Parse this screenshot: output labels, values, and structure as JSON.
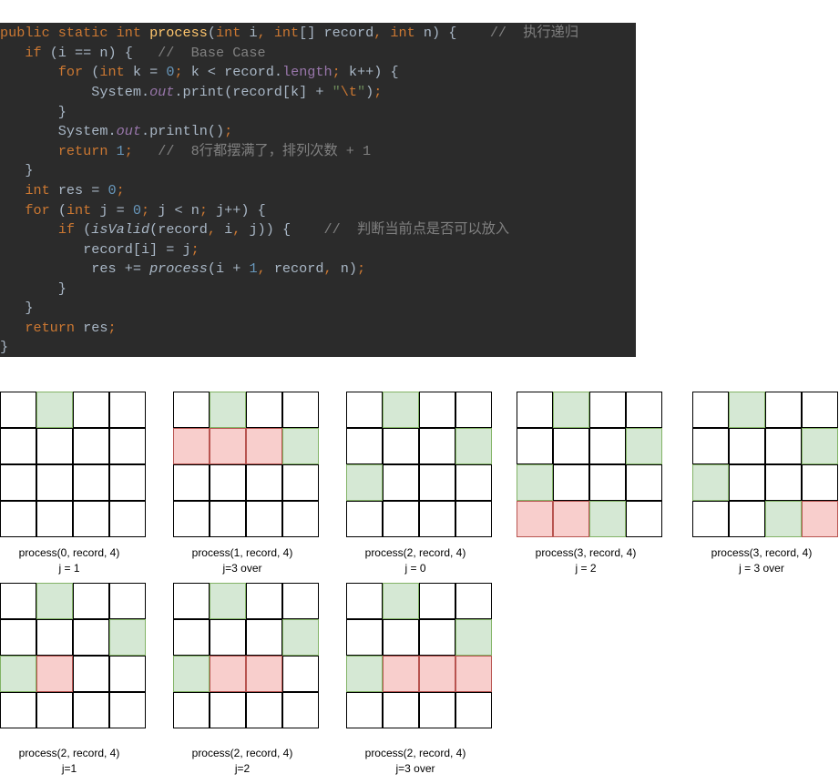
{
  "code": {
    "lines": [
      [
        [
          "kw",
          "public static int "
        ],
        [
          "fn",
          "process"
        ],
        [
          "p",
          "("
        ],
        [
          "kw",
          "int "
        ],
        [
          "p",
          "i"
        ],
        [
          "kw",
          ", int"
        ],
        [
          "p",
          "[] record"
        ],
        [
          "kw",
          ", int "
        ],
        [
          "p",
          "n) {    "
        ],
        [
          "cm",
          "//  执行递归"
        ]
      ],
      [
        [
          "p",
          "   "
        ],
        [
          "kw",
          "if "
        ],
        [
          "p",
          "(i == n) {   "
        ],
        [
          "cm",
          "//  Base Case"
        ]
      ],
      [
        [
          "p",
          "       "
        ],
        [
          "kw",
          "for "
        ],
        [
          "p",
          "("
        ],
        [
          "kw",
          "int "
        ],
        [
          "p",
          "k = "
        ],
        [
          "num",
          "0"
        ],
        [
          "kw",
          "; "
        ],
        [
          "p",
          "k < record."
        ],
        [
          "fld",
          "length"
        ],
        [
          "kw",
          "; "
        ],
        [
          "p",
          "k++) {"
        ]
      ],
      [
        [
          "p",
          "           System."
        ],
        [
          "ifld",
          "out"
        ],
        [
          "p",
          ".print(record[k] + "
        ],
        [
          "str",
          "\""
        ],
        [
          "esc",
          "\\t"
        ],
        [
          "str",
          "\""
        ],
        [
          "p",
          ")"
        ],
        [
          "kw",
          ";"
        ]
      ],
      [
        [
          "p",
          "       }"
        ]
      ],
      [
        [
          "p",
          "       System."
        ],
        [
          "ifld",
          "out"
        ],
        [
          "p",
          ".println()"
        ],
        [
          "kw",
          ";"
        ]
      ],
      [
        [
          "p",
          "       "
        ],
        [
          "kw",
          "return "
        ],
        [
          "num",
          "1"
        ],
        [
          "kw",
          ";   "
        ],
        [
          "cm",
          "//  8行都摆满了，排列次数 + 1"
        ]
      ],
      [
        [
          "p",
          "   }"
        ]
      ],
      [
        [
          "p",
          "   "
        ],
        [
          "kw",
          "int "
        ],
        [
          "p",
          "res = "
        ],
        [
          "num",
          "0"
        ],
        [
          "kw",
          ";"
        ]
      ],
      [
        [
          "p",
          "   "
        ],
        [
          "kw",
          "for "
        ],
        [
          "p",
          "("
        ],
        [
          "kw",
          "int "
        ],
        [
          "p",
          "j = "
        ],
        [
          "num",
          "0"
        ],
        [
          "kw",
          "; "
        ],
        [
          "p",
          "j < n"
        ],
        [
          "kw",
          "; "
        ],
        [
          "p",
          "j++) {"
        ]
      ],
      [
        [
          "p",
          "       "
        ],
        [
          "kw",
          "if "
        ],
        [
          "p",
          "("
        ],
        [
          "it",
          "isValid"
        ],
        [
          "p",
          "(record"
        ],
        [
          "kw",
          ", "
        ],
        [
          "p",
          "i"
        ],
        [
          "kw",
          ", "
        ],
        [
          "p",
          "j)) {    "
        ],
        [
          "cm",
          "//  判断当前点是否可以放入"
        ]
      ],
      [
        [
          "p",
          "          record[i] = j"
        ],
        [
          "kw",
          ";"
        ]
      ],
      [
        [
          "p",
          "           res += "
        ],
        [
          "it",
          "process"
        ],
        [
          "p",
          "(i + "
        ],
        [
          "num",
          "1"
        ],
        [
          "kw",
          ", "
        ],
        [
          "p",
          "record"
        ],
        [
          "kw",
          ", "
        ],
        [
          "p",
          "n)"
        ],
        [
          "kw",
          ";"
        ]
      ],
      [
        [
          "p",
          "       }"
        ]
      ],
      [
        [
          "p",
          "   }"
        ]
      ],
      [
        [
          "p",
          "   "
        ],
        [
          "kw",
          "return "
        ],
        [
          "p",
          "res"
        ],
        [
          "kw",
          ";"
        ]
      ],
      [
        [
          "p",
          "}"
        ]
      ]
    ]
  },
  "colors": {
    "code_bg": "#2b2b2b",
    "placed_fill": "#d5e8d4",
    "placed_stroke": "#82b366",
    "rejected_fill": "#f8cecc",
    "rejected_stroke": "#b85450"
  },
  "boards": [
    {
      "caption1": "process(0, record, 4)",
      "caption2": "j = 1",
      "green": [
        [
          0,
          1
        ]
      ],
      "red": []
    },
    {
      "caption1": "process(1, record, 4)",
      "caption2": "j=3 over",
      "green": [
        [
          0,
          1
        ],
        [
          1,
          3
        ]
      ],
      "red": [
        [
          1,
          0
        ],
        [
          1,
          1
        ],
        [
          1,
          2
        ]
      ]
    },
    {
      "caption1": "process(2, record, 4)",
      "caption2": "j = 0",
      "green": [
        [
          0,
          1
        ],
        [
          1,
          3
        ],
        [
          2,
          0
        ]
      ],
      "red": []
    },
    {
      "caption1": "process(3, record, 4)",
      "caption2": "j = 2",
      "green": [
        [
          0,
          1
        ],
        [
          1,
          3
        ],
        [
          2,
          0
        ],
        [
          3,
          2
        ]
      ],
      "red": [
        [
          3,
          0
        ],
        [
          3,
          1
        ]
      ]
    },
    {
      "caption1": "process(3, record, 4)",
      "caption2": "j = 3 over",
      "green": [
        [
          0,
          1
        ],
        [
          1,
          3
        ],
        [
          2,
          0
        ],
        [
          3,
          2
        ]
      ],
      "red": [
        [
          3,
          3
        ]
      ]
    },
    {
      "caption1": "process(2, record, 4)",
      "caption2": "j=1",
      "green": [
        [
          0,
          1
        ],
        [
          1,
          3
        ],
        [
          2,
          0
        ]
      ],
      "red": [
        [
          2,
          1
        ]
      ]
    },
    {
      "caption1": "process(2, record, 4)",
      "caption2": "j=2",
      "green": [
        [
          0,
          1
        ],
        [
          1,
          3
        ],
        [
          2,
          0
        ]
      ],
      "red": [
        [
          2,
          1
        ],
        [
          2,
          2
        ]
      ]
    },
    {
      "caption1": "process(2, record, 4)",
      "caption2": "j=3 over",
      "green": [
        [
          0,
          1
        ],
        [
          1,
          3
        ],
        [
          2,
          0
        ]
      ],
      "red": [
        [
          2,
          1
        ],
        [
          2,
          2
        ],
        [
          2,
          3
        ]
      ]
    }
  ]
}
